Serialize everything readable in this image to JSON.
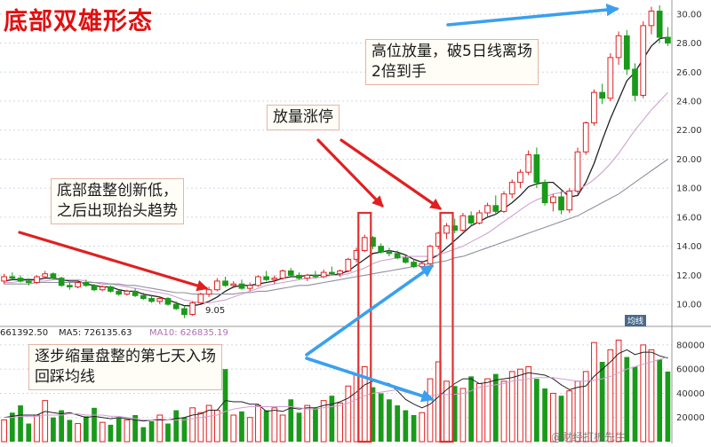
{
  "title": "底部双雄形态",
  "annotations": {
    "high_volume": [
      "高位放量，破5日线离场",
      "2倍到手"
    ],
    "limit_up": "放量涨停",
    "bottom": [
      "底部盘整创新低，",
      "之后出现抬头趋势"
    ],
    "shrink": [
      "逐步缩量盘整的第七天入场",
      "回踩均线"
    ]
  },
  "low_label": "9.05",
  "ma_labels": {
    "vol": "661392.50",
    "ma5": "MA5: 726135.63",
    "ma10": "MA10: 626835.19"
  },
  "watermark": "@财经打板先生",
  "corner_badge": "均线",
  "colors": {
    "up": "#e02020",
    "down": "#1a9a1a",
    "ma5": "#222222",
    "ma10": "#d0a0d0",
    "ma20": "#9090a0",
    "arrow_red": "#e02020",
    "arrow_blue": "#3aa0ee",
    "highlight": "#e03030"
  },
  "chart_data": [
    {
      "type": "candlestick",
      "y_ticks": [
        10.0,
        12.0,
        14.0,
        16.0,
        18.0,
        20.0,
        22.0,
        24.0,
        26.0,
        28.0,
        30.0
      ],
      "ylim": [
        8.6,
        30.6
      ],
      "grid": true,
      "candles": [
        [
          11.6,
          12.1,
          11.4,
          11.9
        ],
        [
          11.9,
          12.2,
          11.7,
          11.8
        ],
        [
          11.8,
          12.0,
          11.5,
          11.6
        ],
        [
          11.6,
          11.8,
          11.3,
          11.5
        ],
        [
          11.5,
          12.0,
          11.4,
          11.9
        ],
        [
          11.9,
          12.3,
          11.8,
          12.1
        ],
        [
          12.1,
          12.2,
          11.7,
          11.8
        ],
        [
          11.8,
          11.9,
          11.2,
          11.3
        ],
        [
          11.3,
          11.5,
          11.0,
          11.2
        ],
        [
          11.2,
          11.6,
          11.1,
          11.5
        ],
        [
          11.5,
          11.7,
          11.2,
          11.3
        ],
        [
          11.3,
          11.4,
          10.9,
          11.0
        ],
        [
          11.0,
          11.3,
          10.9,
          11.2
        ],
        [
          11.2,
          11.3,
          10.8,
          10.9
        ],
        [
          10.9,
          11.0,
          10.6,
          10.7
        ],
        [
          10.7,
          11.0,
          10.6,
          10.9
        ],
        [
          10.9,
          11.1,
          10.5,
          10.6
        ],
        [
          10.6,
          10.8,
          10.3,
          10.4
        ],
        [
          10.4,
          10.6,
          10.1,
          10.2
        ],
        [
          10.2,
          10.5,
          10.0,
          10.4
        ],
        [
          10.4,
          10.5,
          9.9,
          10.0
        ],
        [
          10.0,
          10.2,
          9.6,
          9.7
        ],
        [
          9.7,
          9.9,
          9.05,
          9.3
        ],
        [
          9.3,
          10.2,
          9.2,
          10.1
        ],
        [
          10.1,
          10.8,
          10.0,
          10.7
        ],
        [
          10.7,
          11.2,
          10.5,
          11.0
        ],
        [
          11.0,
          11.8,
          10.9,
          11.6
        ],
        [
          11.6,
          11.9,
          11.2,
          11.3
        ],
        [
          11.3,
          11.6,
          11.1,
          11.4
        ],
        [
          11.4,
          11.7,
          11.0,
          11.1
        ],
        [
          11.1,
          11.5,
          10.9,
          11.3
        ],
        [
          11.3,
          12.0,
          11.2,
          11.9
        ],
        [
          11.9,
          12.3,
          11.6,
          11.7
        ],
        [
          11.7,
          12.0,
          11.4,
          11.8
        ],
        [
          11.8,
          12.4,
          11.7,
          12.3
        ],
        [
          12.3,
          12.5,
          11.9,
          12.0
        ],
        [
          12.0,
          12.2,
          11.7,
          11.8
        ],
        [
          11.8,
          12.1,
          11.6,
          12.0
        ],
        [
          12.0,
          12.3,
          11.8,
          11.9
        ],
        [
          11.9,
          12.4,
          11.8,
          12.2
        ],
        [
          12.2,
          12.6,
          12.0,
          12.1
        ],
        [
          12.1,
          12.4,
          11.9,
          12.3
        ],
        [
          12.3,
          13.2,
          12.2,
          13.1
        ],
        [
          13.1,
          13.9,
          12.9,
          13.7
        ],
        [
          13.7,
          14.8,
          13.6,
          14.6
        ],
        [
          14.6,
          14.7,
          13.8,
          14.0
        ],
        [
          14.0,
          14.2,
          13.5,
          13.6
        ],
        [
          13.6,
          13.9,
          13.3,
          13.5
        ],
        [
          13.5,
          13.7,
          13.1,
          13.2
        ],
        [
          13.2,
          13.4,
          12.8,
          12.9
        ],
        [
          12.9,
          13.1,
          12.5,
          12.6
        ],
        [
          12.6,
          13.0,
          12.4,
          12.8
        ],
        [
          12.8,
          14.1,
          12.7,
          14.0
        ],
        [
          14.0,
          15.0,
          13.8,
          14.9
        ],
        [
          14.9,
          15.6,
          14.5,
          15.4
        ],
        [
          15.4,
          15.9,
          14.9,
          15.1
        ],
        [
          15.1,
          16.3,
          15.0,
          16.1
        ],
        [
          16.1,
          16.4,
          15.4,
          15.6
        ],
        [
          15.6,
          16.5,
          15.5,
          16.3
        ],
        [
          16.3,
          17.0,
          16.0,
          16.8
        ],
        [
          16.8,
          17.5,
          16.2,
          16.4
        ],
        [
          16.4,
          17.8,
          16.3,
          17.6
        ],
        [
          17.6,
          18.6,
          17.3,
          18.4
        ],
        [
          18.4,
          19.3,
          18.0,
          19.1
        ],
        [
          19.1,
          20.6,
          18.9,
          20.3
        ],
        [
          20.3,
          20.8,
          18.0,
          18.4
        ],
        [
          18.4,
          18.6,
          16.8,
          17.0
        ],
        [
          17.0,
          17.6,
          16.4,
          17.4
        ],
        [
          17.4,
          17.8,
          16.2,
          16.5
        ],
        [
          16.5,
          18.0,
          16.3,
          17.8
        ],
        [
          17.8,
          20.8,
          17.6,
          20.5
        ],
        [
          20.5,
          22.6,
          20.3,
          22.5
        ],
        [
          22.5,
          24.8,
          22.3,
          24.6
        ],
        [
          24.6,
          25.2,
          23.8,
          24.2
        ],
        [
          24.2,
          27.3,
          24.0,
          27.0
        ],
        [
          27.0,
          28.8,
          26.5,
          28.5
        ],
        [
          28.5,
          28.9,
          25.8,
          26.2
        ],
        [
          26.2,
          26.6,
          24.0,
          24.4
        ],
        [
          24.4,
          29.5,
          24.2,
          29.2
        ],
        [
          29.2,
          30.5,
          28.6,
          30.2
        ],
        [
          30.2,
          30.6,
          28.0,
          28.4
        ],
        [
          28.4,
          29.1,
          27.8,
          28.0
        ]
      ],
      "ma_lines": [
        {
          "name": "MA5",
          "values": [
            11.6,
            11.7,
            11.7,
            11.7,
            11.7,
            11.8,
            11.8,
            11.7,
            11.6,
            11.6,
            11.4,
            11.3,
            11.2,
            11.2,
            11.0,
            10.9,
            10.9,
            10.7,
            10.6,
            10.5,
            10.3,
            10.1,
            9.9,
            9.9,
            10.0,
            10.2,
            10.5,
            10.9,
            11.2,
            11.3,
            11.3,
            11.4,
            11.5,
            11.6,
            11.8,
            11.9,
            11.9,
            12.0,
            12.0,
            12.0,
            12.0,
            12.1,
            12.3,
            12.7,
            13.1,
            13.5,
            13.6,
            13.7,
            13.6,
            13.4,
            13.1,
            12.9,
            13.1,
            13.4,
            13.9,
            14.4,
            14.9,
            15.4,
            15.7,
            16.0,
            16.2,
            16.6,
            17.0,
            17.5,
            18.1,
            18.3,
            18.4,
            18.4,
            17.9,
            17.4,
            17.5,
            18.4,
            19.7,
            21.3,
            22.8,
            24.1,
            25.4,
            26.0,
            26.9,
            27.8,
            28.3,
            28.4
          ]
        },
        {
          "name": "MA10",
          "values": [
            11.5,
            11.5,
            11.6,
            11.6,
            11.6,
            11.6,
            11.7,
            11.7,
            11.7,
            11.7,
            11.6,
            11.5,
            11.5,
            11.4,
            11.3,
            11.2,
            11.1,
            11.0,
            10.9,
            10.8,
            10.7,
            10.5,
            10.3,
            10.2,
            10.1,
            10.1,
            10.2,
            10.3,
            10.5,
            10.7,
            10.9,
            11.1,
            11.3,
            11.4,
            11.5,
            11.6,
            11.7,
            11.8,
            11.8,
            11.9,
            12.0,
            12.0,
            12.1,
            12.3,
            12.5,
            12.8,
            13.0,
            13.1,
            13.2,
            13.3,
            13.3,
            13.3,
            13.3,
            13.4,
            13.6,
            13.8,
            14.0,
            14.3,
            14.6,
            14.9,
            15.3,
            15.7,
            16.1,
            16.5,
            16.9,
            17.2,
            17.4,
            17.6,
            17.7,
            17.8,
            17.9,
            18.2,
            18.6,
            19.1,
            19.7,
            20.4,
            21.2,
            22.0,
            22.7,
            23.4,
            24.0,
            24.6
          ]
        },
        {
          "name": "MA20",
          "values": [
            11.4,
            11.4,
            11.4,
            11.4,
            11.5,
            11.5,
            11.5,
            11.5,
            11.5,
            11.5,
            11.5,
            11.5,
            11.4,
            11.4,
            11.4,
            11.3,
            11.3,
            11.2,
            11.1,
            11.0,
            10.9,
            10.8,
            10.8,
            10.7,
            10.7,
            10.7,
            10.7,
            10.7,
            10.7,
            10.8,
            10.8,
            10.9,
            10.9,
            11.0,
            11.1,
            11.2,
            11.3,
            11.3,
            11.4,
            11.5,
            11.6,
            11.7,
            11.8,
            11.9,
            12.0,
            12.1,
            12.2,
            12.3,
            12.4,
            12.5,
            12.6,
            12.7,
            12.8,
            12.9,
            13.0,
            13.2,
            13.3,
            13.5,
            13.7,
            13.9,
            14.1,
            14.3,
            14.5,
            14.7,
            14.9,
            15.1,
            15.3,
            15.5,
            15.7,
            15.9,
            16.1,
            16.4,
            16.7,
            17.0,
            17.3,
            17.6,
            18.0,
            18.4,
            18.8,
            19.2,
            19.6,
            20.0
          ]
        }
      ]
    },
    {
      "type": "bar",
      "y_ticks": [
        20000,
        40000,
        60000,
        80000
      ],
      "ylim": [
        0,
        88000
      ],
      "volumes": [
        18000,
        24000,
        30000,
        15000,
        22000,
        34000,
        20000,
        26000,
        18000,
        15000,
        21000,
        28000,
        16000,
        14000,
        20000,
        18000,
        22000,
        12000,
        17000,
        22000,
        15000,
        26000,
        20000,
        28000,
        24000,
        30000,
        26000,
        60000,
        22000,
        25000,
        20000,
        30000,
        26000,
        28000,
        22000,
        35000,
        24000,
        30000,
        28000,
        34000,
        38000,
        32000,
        46000,
        56000,
        62000,
        45000,
        40000,
        35000,
        30000,
        26000,
        22000,
        24000,
        52000,
        66000,
        50000,
        46000,
        44000,
        54000,
        48000,
        52000,
        56000,
        50000,
        58000,
        60000,
        62000,
        52000,
        44000,
        40000,
        38000,
        42000,
        50000,
        58000,
        82000,
        66000,
        76000,
        84000,
        70000,
        62000,
        80000,
        76000,
        68000,
        58000
      ],
      "ma_lines": [
        {
          "name": "MA5",
          "values": [
            20000,
            21000,
            22000,
            22000,
            22000,
            25000,
            24000,
            23000,
            24000,
            22000,
            20000,
            21000,
            20000,
            19000,
            20000,
            19000,
            18000,
            17000,
            18000,
            18000,
            18000,
            19000,
            20000,
            22000,
            23000,
            26000,
            26000,
            34000,
            33000,
            33000,
            31000,
            31000,
            25000,
            26000,
            25000,
            28000,
            27000,
            28000,
            28000,
            30000,
            31000,
            33000,
            36000,
            41000,
            47000,
            50000,
            49000,
            48000,
            42000,
            35000,
            31000,
            28000,
            31000,
            37000,
            43000,
            48000,
            52000,
            52000,
            48000,
            49000,
            51000,
            52000,
            53000,
            55000,
            57000,
            56000,
            55000,
            52000,
            47000,
            43000,
            45000,
            46000,
            54000,
            60000,
            66000,
            73000,
            76000,
            72000,
            74000,
            74000,
            71000,
            69000
          ]
        },
        {
          "name": "MA10",
          "values": [
            20000,
            20000,
            21000,
            21000,
            21000,
            22000,
            22000,
            22000,
            23000,
            23000,
            22000,
            22000,
            22000,
            21000,
            21000,
            20000,
            19000,
            18000,
            18000,
            19000,
            18000,
            18000,
            18000,
            19000,
            20000,
            21000,
            22000,
            25000,
            27000,
            28000,
            29000,
            29000,
            29000,
            29000,
            29000,
            29000,
            28000,
            27000,
            27000,
            28000,
            29000,
            30000,
            32000,
            35000,
            38000,
            40000,
            41000,
            42000,
            43000,
            41000,
            39000,
            38000,
            38000,
            39000,
            39000,
            39000,
            40000,
            42000,
            45000,
            46000,
            47000,
            48000,
            50000,
            51000,
            52000,
            53000,
            53000,
            53000,
            52000,
            51000,
            50000,
            50000,
            51000,
            52000,
            54000,
            57000,
            60000,
            62000,
            64000,
            66000,
            68000,
            70000
          ]
        }
      ]
    }
  ]
}
